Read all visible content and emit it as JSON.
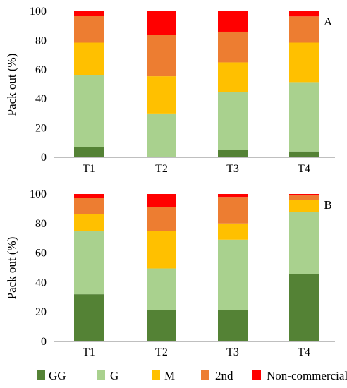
{
  "chart_data": [
    {
      "type": "bar",
      "stacked": true,
      "panel_label": "A",
      "categories": [
        "T1",
        "T2",
        "T3",
        "T4"
      ],
      "ylabel": "Pack out (%)",
      "ylim": [
        0,
        100
      ],
      "yticks": [
        0,
        20,
        40,
        60,
        80,
        100
      ],
      "series": [
        {
          "name": "GG",
          "color": "#548235",
          "values": [
            7,
            0,
            5,
            4
          ]
        },
        {
          "name": "G",
          "color": "#a9d18e",
          "values": [
            49.5,
            30,
            39.5,
            47.5
          ]
        },
        {
          "name": "M",
          "color": "#ffc000",
          "values": [
            22,
            25.5,
            20.5,
            27
          ]
        },
        {
          "name": "2nd",
          "color": "#ed7d31",
          "values": [
            18.5,
            28.5,
            21,
            18
          ]
        },
        {
          "name": "Non-commercial",
          "color": "#ff0000",
          "values": [
            3,
            16,
            14,
            3.5
          ]
        }
      ]
    },
    {
      "type": "bar",
      "stacked": true,
      "panel_label": "B",
      "categories": [
        "T1",
        "T2",
        "T3",
        "T4"
      ],
      "ylabel": "Pack out (%)",
      "ylim": [
        0,
        100
      ],
      "yticks": [
        0,
        20,
        40,
        60,
        80,
        100
      ],
      "series": [
        {
          "name": "GG",
          "color": "#548235",
          "values": [
            32,
            21.5,
            21.5,
            45.5
          ]
        },
        {
          "name": "G",
          "color": "#a9d18e",
          "values": [
            43,
            28,
            47.5,
            42.5
          ]
        },
        {
          "name": "M",
          "color": "#ffc000",
          "values": [
            11.5,
            25.5,
            11,
            8
          ]
        },
        {
          "name": "2nd",
          "color": "#ed7d31",
          "values": [
            11,
            16,
            18,
            3
          ]
        },
        {
          "name": "Non-commercial",
          "color": "#ff0000",
          "values": [
            2.5,
            9,
            2,
            1
          ]
        }
      ]
    }
  ],
  "legend": {
    "placement": "bottom",
    "items": [
      {
        "name": "GG",
        "color": "#548235"
      },
      {
        "name": "G",
        "color": "#a9d18e"
      },
      {
        "name": "M",
        "color": "#ffc000"
      },
      {
        "name": "2nd",
        "color": "#ed7d31"
      },
      {
        "name": "Non-commercial",
        "color": "#ff0000"
      }
    ]
  }
}
